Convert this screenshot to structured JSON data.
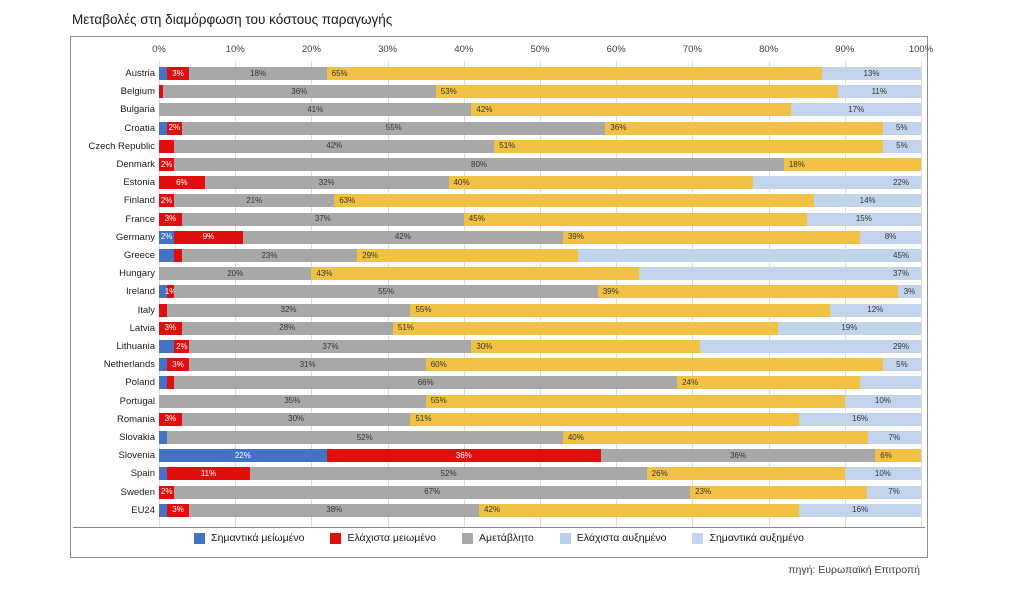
{
  "title": "Μεταβολές στη διαμόρφωση του κόστους παραγωγής",
  "source": "πηγή: Ευρωπαϊκή Επιτροπή",
  "axis": {
    "ticks": [
      "0%",
      "10%",
      "20%",
      "30%",
      "40%",
      "50%",
      "60%",
      "70%",
      "80%",
      "90%",
      "100%"
    ]
  },
  "colors": {
    "blue": "#4472C4",
    "red": "#E10E0E",
    "gray": "#A8A8A8",
    "yellow": "#F0C143",
    "lite": "#C2D4EC",
    "legend_lite1": "#BCCFE8",
    "legend_lite2": "#C4D6EE",
    "grid": "#DCDCDC",
    "border": "#909090"
  },
  "legend": [
    {
      "key": "blue",
      "label": "Σημαντικά μείωμένο"
    },
    {
      "key": "red",
      "label": "Ελάχιστα μειωμένο"
    },
    {
      "key": "gray",
      "label": "Αμετάβλητο"
    },
    {
      "key": "lite1",
      "label": "Ελάχιστα αυξημένο"
    },
    {
      "key": "lite2",
      "label": "Σημαντικά αυξημένο"
    }
  ],
  "chart_data": {
    "type": "bar",
    "stacked": true,
    "orientation": "horizontal",
    "xlim": [
      0,
      100
    ],
    "grid": true,
    "series_names": [
      "Σημαντικά μείωμένο",
      "Ελάχιστα μειωμένο",
      "Αμετάβλητο",
      "Ελάχιστα αυξημένο",
      "Σημαντικά αυξημένο"
    ],
    "categories": [
      "Austria",
      "Belgium",
      "Bulgaria",
      "Croatia",
      "Czech Republic",
      "Denmark",
      "Estonia",
      "Finland",
      "France",
      "Germany",
      "Greece",
      "Hungary",
      "Ireland",
      "Italy",
      "Latvia",
      "Lithuania",
      "Netherlands",
      "Poland",
      "Portugal",
      "Romania",
      "Slovakia",
      "Slovenia",
      "Spain",
      "Sweden",
      "EU24"
    ],
    "rows": [
      {
        "country": "Austria",
        "segments": [
          {
            "c": "blue",
            "v": 1,
            "t": ""
          },
          {
            "c": "red",
            "v": 3,
            "t": "3%"
          },
          {
            "c": "gray",
            "v": 18,
            "t": "18%"
          },
          {
            "c": "yellow",
            "v": 65,
            "t": "65%"
          },
          {
            "c": "lite",
            "v": 13,
            "t": "13%"
          }
        ]
      },
      {
        "country": "Belgium",
        "segments": [
          {
            "c": "red",
            "v": 0.5,
            "t": ""
          },
          {
            "c": "gray",
            "v": 36,
            "t": "36%"
          },
          {
            "c": "yellow",
            "v": 53,
            "t": "53%"
          },
          {
            "c": "lite",
            "v": 11,
            "t": "11%"
          }
        ]
      },
      {
        "country": "Bulgaria",
        "segments": [
          {
            "c": "gray",
            "v": 41,
            "t": "41%"
          },
          {
            "c": "yellow",
            "v": 42,
            "t": "42%"
          },
          {
            "c": "lite",
            "v": 17,
            "t": "17%"
          }
        ]
      },
      {
        "country": "Croatia",
        "segments": [
          {
            "c": "blue",
            "v": 1,
            "t": ""
          },
          {
            "c": "red",
            "v": 2,
            "t": "2%"
          },
          {
            "c": "gray",
            "v": 55,
            "t": "55%"
          },
          {
            "c": "yellow",
            "v": 36,
            "t": "36%"
          },
          {
            "c": "lite",
            "v": 5,
            "t": "5%"
          }
        ]
      },
      {
        "country": "Czech Republic",
        "segments": [
          {
            "c": "red",
            "v": 2,
            "t": ""
          },
          {
            "c": "gray",
            "v": 42,
            "t": "42%"
          },
          {
            "c": "yellow",
            "v": 51,
            "t": "51%"
          },
          {
            "c": "lite",
            "v": 5,
            "t": "5%"
          }
        ]
      },
      {
        "country": "Denmark",
        "segments": [
          {
            "c": "red",
            "v": 2,
            "t": "2%"
          },
          {
            "c": "gray",
            "v": 80,
            "t": "80%"
          },
          {
            "c": "yellow",
            "v": 18,
            "t": "18%"
          }
        ]
      },
      {
        "country": "Estonia",
        "segments": [
          {
            "c": "red",
            "v": 6,
            "t": "6%"
          },
          {
            "c": "gray",
            "v": 32,
            "t": "32%"
          },
          {
            "c": "yellow",
            "v": 40,
            "t": "40%"
          },
          {
            "c": "lite",
            "v": 22,
            "t": "22%"
          }
        ]
      },
      {
        "country": "Finland",
        "segments": [
          {
            "c": "red",
            "v": 2,
            "t": "2%"
          },
          {
            "c": "gray",
            "v": 21,
            "t": "21%"
          },
          {
            "c": "yellow",
            "v": 63,
            "t": "63%"
          },
          {
            "c": "lite",
            "v": 14,
            "t": "14%"
          }
        ]
      },
      {
        "country": "France",
        "segments": [
          {
            "c": "red",
            "v": 3,
            "t": "3%"
          },
          {
            "c": "gray",
            "v": 37,
            "t": "37%"
          },
          {
            "c": "yellow",
            "v": 45,
            "t": "45%"
          },
          {
            "c": "lite",
            "v": 15,
            "t": "15%"
          }
        ]
      },
      {
        "country": "Germany",
        "segments": [
          {
            "c": "blue",
            "v": 2,
            "t": "2%"
          },
          {
            "c": "red",
            "v": 9,
            "t": "9%"
          },
          {
            "c": "gray",
            "v": 42,
            "t": "42%"
          },
          {
            "c": "yellow",
            "v": 39,
            "t": "39%"
          },
          {
            "c": "lite",
            "v": 8,
            "t": "8%"
          }
        ]
      },
      {
        "country": "Greece",
        "segments": [
          {
            "c": "blue",
            "v": 2,
            "t": ""
          },
          {
            "c": "red",
            "v": 1,
            "t": ""
          },
          {
            "c": "gray",
            "v": 23,
            "t": "23%"
          },
          {
            "c": "yellow",
            "v": 29,
            "t": "29%"
          },
          {
            "c": "lite",
            "v": 45,
            "t": "45%"
          }
        ]
      },
      {
        "country": "Hungary",
        "segments": [
          {
            "c": "gray",
            "v": 20,
            "t": "20%"
          },
          {
            "c": "yellow",
            "v": 43,
            "t": "43%"
          },
          {
            "c": "lite",
            "v": 37,
            "t": "37%"
          }
        ]
      },
      {
        "country": "Ireland",
        "segments": [
          {
            "c": "blue",
            "v": 1,
            "t": ""
          },
          {
            "c": "red",
            "v": 1,
            "t": "1%"
          },
          {
            "c": "gray",
            "v": 55,
            "t": "55%"
          },
          {
            "c": "yellow",
            "v": 39,
            "t": "39%"
          },
          {
            "c": "lite",
            "v": 3,
            "t": "3%"
          }
        ]
      },
      {
        "country": "Italy",
        "segments": [
          {
            "c": "red",
            "v": 1,
            "t": ""
          },
          {
            "c": "gray",
            "v": 32,
            "t": "32%"
          },
          {
            "c": "yellow",
            "v": 55,
            "t": "55%"
          },
          {
            "c": "lite",
            "v": 12,
            "t": "12%"
          }
        ]
      },
      {
        "country": "Latvia",
        "segments": [
          {
            "c": "red",
            "v": 3,
            "t": "3%"
          },
          {
            "c": "gray",
            "v": 28,
            "t": "28%"
          },
          {
            "c": "yellow",
            "v": 51,
            "t": "51%"
          },
          {
            "c": "lite",
            "v": 19,
            "t": "19%"
          }
        ]
      },
      {
        "country": "Lithuania",
        "segments": [
          {
            "c": "blue",
            "v": 2,
            "t": ""
          },
          {
            "c": "red",
            "v": 2,
            "t": "2%"
          },
          {
            "c": "gray",
            "v": 37,
            "t": "37%"
          },
          {
            "c": "yellow",
            "v": 30,
            "t": "30%"
          },
          {
            "c": "lite",
            "v": 29,
            "t": "29%"
          }
        ]
      },
      {
        "country": "Netherlands",
        "segments": [
          {
            "c": "blue",
            "v": 1,
            "t": ""
          },
          {
            "c": "red",
            "v": 3,
            "t": "3%"
          },
          {
            "c": "gray",
            "v": 31,
            "t": "31%"
          },
          {
            "c": "yellow",
            "v": 60,
            "t": "60%"
          },
          {
            "c": "lite",
            "v": 5,
            "t": "5%"
          }
        ]
      },
      {
        "country": "Poland",
        "segments": [
          {
            "c": "blue",
            "v": 1,
            "t": ""
          },
          {
            "c": "red",
            "v": 1,
            "t": ""
          },
          {
            "c": "gray",
            "v": 66,
            "t": "66%"
          },
          {
            "c": "yellow",
            "v": 24,
            "t": "24%"
          },
          {
            "c": "lite",
            "v": 8,
            "t": ""
          }
        ]
      },
      {
        "country": "Portugal",
        "segments": [
          {
            "c": "gray",
            "v": 35,
            "t": "35%"
          },
          {
            "c": "yellow",
            "v": 55,
            "t": "55%"
          },
          {
            "c": "lite",
            "v": 10,
            "t": "10%"
          }
        ]
      },
      {
        "country": "Romania",
        "segments": [
          {
            "c": "red",
            "v": 3,
            "t": "3%"
          },
          {
            "c": "gray",
            "v": 30,
            "t": "30%"
          },
          {
            "c": "yellow",
            "v": 51,
            "t": "51%"
          },
          {
            "c": "lite",
            "v": 16,
            "t": "16%"
          }
        ]
      },
      {
        "country": "Slovakia",
        "segments": [
          {
            "c": "blue",
            "v": 1,
            "t": ""
          },
          {
            "c": "gray",
            "v": 52,
            "t": "52%"
          },
          {
            "c": "yellow",
            "v": 40,
            "t": "40%"
          },
          {
            "c": "lite",
            "v": 7,
            "t": "7%"
          }
        ]
      },
      {
        "country": "Slovenia",
        "segments": [
          {
            "c": "blue",
            "v": 22,
            "t": "22%"
          },
          {
            "c": "red",
            "v": 36,
            "t": "36%"
          },
          {
            "c": "gray",
            "v": 36,
            "t": "36%"
          },
          {
            "c": "yellow",
            "v": 6,
            "t": "6%"
          }
        ]
      },
      {
        "country": "Spain",
        "segments": [
          {
            "c": "blue",
            "v": 1,
            "t": ""
          },
          {
            "c": "red",
            "v": 11,
            "t": "11%"
          },
          {
            "c": "gray",
            "v": 52,
            "t": "52%"
          },
          {
            "c": "yellow",
            "v": 26,
            "t": "26%"
          },
          {
            "c": "lite",
            "v": 10,
            "t": "10%"
          }
        ]
      },
      {
        "country": "Sweden",
        "segments": [
          {
            "c": "red",
            "v": 2,
            "t": "2%"
          },
          {
            "c": "gray",
            "v": 67,
            "t": "67%"
          },
          {
            "c": "yellow",
            "v": 23,
            "t": "23%"
          },
          {
            "c": "lite",
            "v": 7,
            "t": "7%"
          }
        ]
      },
      {
        "country": "EU24",
        "segments": [
          {
            "c": "blue",
            "v": 1,
            "t": ""
          },
          {
            "c": "red",
            "v": 3,
            "t": "3%"
          },
          {
            "c": "gray",
            "v": 38,
            "t": "38%"
          },
          {
            "c": "yellow",
            "v": 42,
            "t": "42%"
          },
          {
            "c": "lite",
            "v": 16,
            "t": "16%"
          }
        ]
      }
    ]
  }
}
